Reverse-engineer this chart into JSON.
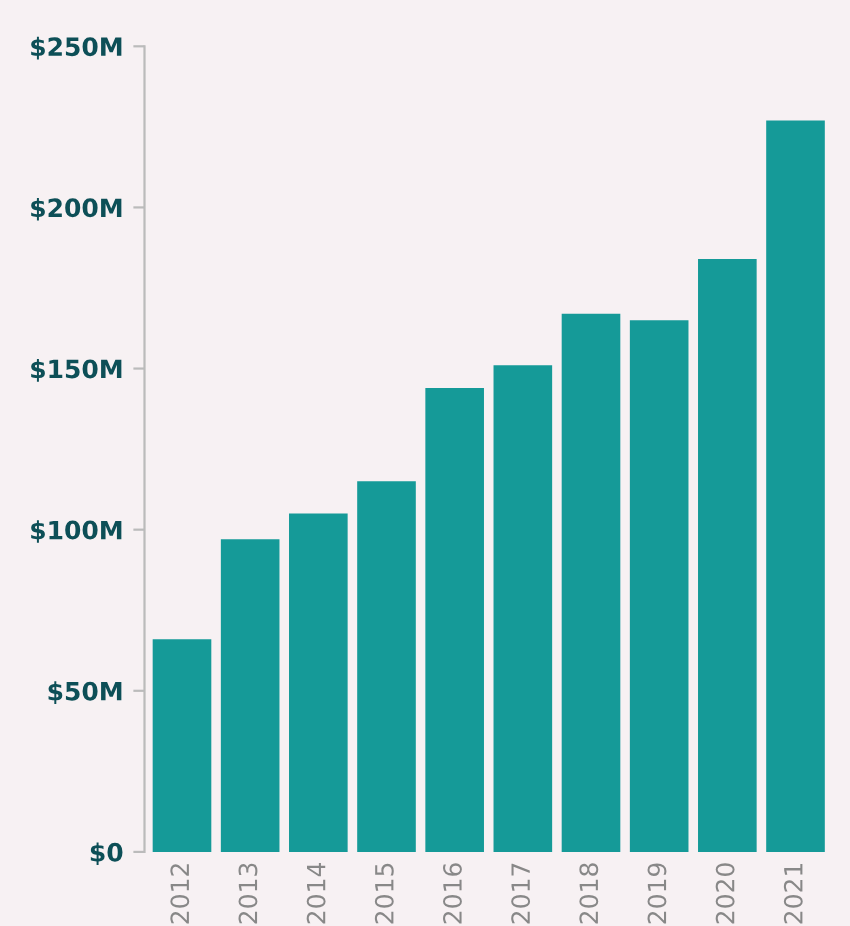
{
  "chart_data": {
    "type": "bar",
    "categories": [
      "2012",
      "2013",
      "2014",
      "2015",
      "2016",
      "2017",
      "2018",
      "2019",
      "2020",
      "2021"
    ],
    "values": [
      66,
      97,
      105,
      115,
      144,
      151,
      167,
      165,
      184,
      227
    ],
    "color": "#159a98",
    "ylim": [
      0,
      250
    ],
    "yticks": [
      {
        "value": 0,
        "label": "$0"
      },
      {
        "value": 50,
        "label": "$50M"
      },
      {
        "value": 100,
        "label": "$100M"
      },
      {
        "value": 150,
        "label": "$150M"
      },
      {
        "value": 200,
        "label": "$200M"
      },
      {
        "value": 250,
        "label": "$250M"
      }
    ],
    "grid": false,
    "legend": false
  }
}
